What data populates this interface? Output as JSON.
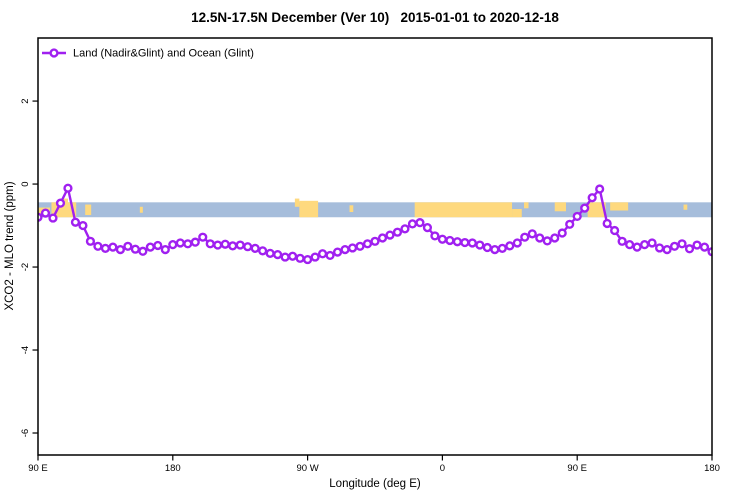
{
  "title": "12.5N-17.5N December (Ver 10)   2015-01-01 to 2020-12-18",
  "legend": {
    "label": "Land (Nadir&Glint) and Ocean (Glint)"
  },
  "colors": {
    "line": "#a020f0",
    "marker_fill": "#ffffff",
    "ocean": "#a6bddb",
    "land": "#fed97e",
    "axis": "#000000",
    "background": "#ffffff"
  },
  "chart_data": {
    "type": "line",
    "title": "12.5N-17.5N December (Ver 10)   2015-01-01 to 2020-12-18",
    "xlabel": "Longitude (deg E)",
    "ylabel": "XCO2 - MLO trend (ppm)",
    "xlim": [
      90,
      540
    ],
    "ylim": [
      -6.53,
      3.52
    ],
    "grid": false,
    "legend_position": "top-left",
    "x_ticks": [
      {
        "v": 90,
        "label": "90 E"
      },
      {
        "v": 180,
        "label": "180"
      },
      {
        "v": 270,
        "label": "90 W"
      },
      {
        "v": 360,
        "label": "0"
      },
      {
        "v": 450,
        "label": "90 E"
      },
      {
        "v": 540,
        "label": "180"
      }
    ],
    "y_ticks": [
      {
        "v": 2,
        "label": "2"
      },
      {
        "v": 0,
        "label": "0"
      },
      {
        "v": -2,
        "label": "-2"
      },
      {
        "v": -4,
        "label": "-4"
      },
      {
        "v": -6,
        "label": "-6"
      }
    ],
    "series": [
      {
        "name": "Land (Nadir&Glint) and Ocean (Glint)",
        "color": "#a020f0",
        "marker": "open-circle",
        "x_start": 90,
        "x_step": 5,
        "values": [
          -0.8,
          -0.7,
          -0.82,
          -0.46,
          -0.1,
          -0.92,
          -1.0,
          -1.38,
          -1.5,
          -1.55,
          -1.52,
          -1.58,
          -1.5,
          -1.57,
          -1.62,
          -1.52,
          -1.48,
          -1.58,
          -1.46,
          -1.42,
          -1.44,
          -1.4,
          -1.28,
          -1.44,
          -1.47,
          -1.45,
          -1.49,
          -1.47,
          -1.51,
          -1.55,
          -1.61,
          -1.67,
          -1.7,
          -1.76,
          -1.74,
          -1.79,
          -1.82,
          -1.76,
          -1.68,
          -1.72,
          -1.64,
          -1.58,
          -1.54,
          -1.5,
          -1.44,
          -1.38,
          -1.3,
          -1.23,
          -1.16,
          -1.08,
          -0.96,
          -0.93,
          -1.05,
          -1.25,
          -1.33,
          -1.36,
          -1.39,
          -1.41,
          -1.42,
          -1.47,
          -1.53,
          -1.58,
          -1.55,
          -1.49,
          -1.42,
          -1.28,
          -1.2,
          -1.3,
          -1.37,
          -1.3,
          -1.18,
          -0.97,
          -0.78,
          -0.58,
          -0.33,
          -0.12,
          -0.95,
          -1.12,
          -1.38,
          -1.46,
          -1.52,
          -1.46,
          -1.42,
          -1.54,
          -1.58,
          -1.5,
          -1.44,
          -1.56,
          -1.47,
          -1.52,
          -1.63
        ]
      }
    ],
    "map_band": {
      "description": "land-ocean strip at 12.5N-17.5N",
      "y_range": [
        -0.44,
        -0.8
      ],
      "ocean_color": "#a6bddb",
      "land_color": "#fed97e",
      "land_segments": [
        {
          "x0": 90,
          "x1": 98,
          "t": 0.35,
          "h": 0.5
        },
        {
          "x0": 99,
          "x1": 115.5,
          "t": 0,
          "h": 1
        },
        {
          "x0": 105,
          "x1": 110,
          "t": -0.25,
          "h": 0.35
        },
        {
          "x0": 121.5,
          "x1": 125.5,
          "t": 0.15,
          "h": 0.7
        },
        {
          "x0": 158,
          "x1": 160,
          "t": 0.3,
          "h": 0.4
        },
        {
          "x0": 261.5,
          "x1": 264.5,
          "t": -0.25,
          "h": 0.55
        },
        {
          "x0": 264.5,
          "x1": 277,
          "t": -0.1,
          "h": 1.1
        },
        {
          "x0": 298,
          "x1": 300.5,
          "t": 0.2,
          "h": 0.45
        },
        {
          "x0": 341.5,
          "x1": 406.5,
          "t": 0,
          "h": 1
        },
        {
          "x0": 406.5,
          "x1": 413,
          "t": 0.45,
          "h": 0.55
        },
        {
          "x0": 414.5,
          "x1": 417.5,
          "t": 0,
          "h": 0.4
        },
        {
          "x0": 435,
          "x1": 442.5,
          "t": 0,
          "h": 0.6
        },
        {
          "x0": 457,
          "x1": 469,
          "t": 0,
          "h": 1
        },
        {
          "x0": 472,
          "x1": 484,
          "t": 0,
          "h": 0.55
        },
        {
          "x0": 521,
          "x1": 523.5,
          "t": 0.15,
          "h": 0.35
        }
      ]
    }
  }
}
